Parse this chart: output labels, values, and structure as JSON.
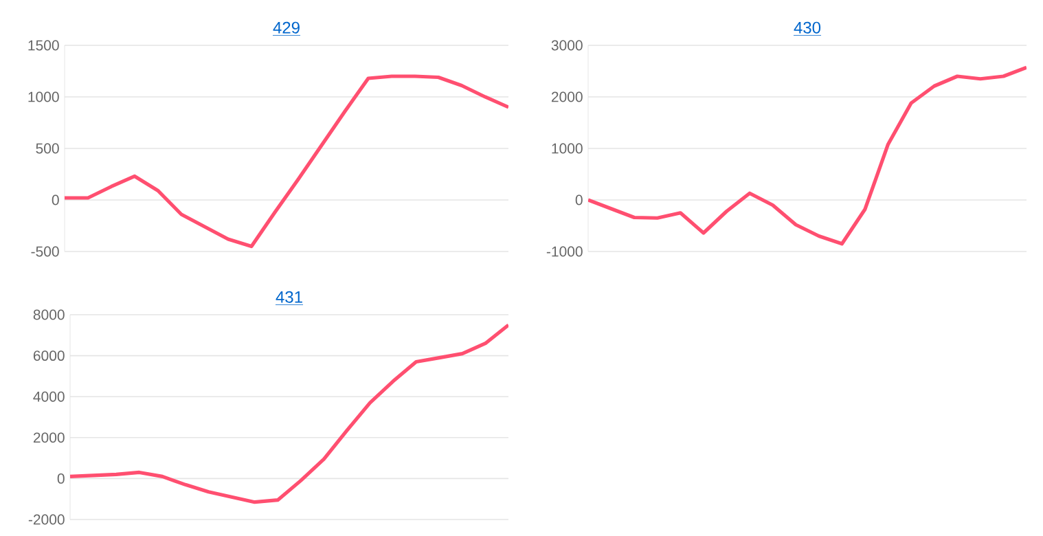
{
  "chart_data": [
    {
      "type": "line",
      "title": "429",
      "categories": [
        null,
        null,
        null,
        null,
        null,
        null,
        null,
        null,
        null,
        null,
        null,
        null,
        null,
        null,
        null,
        null,
        null,
        null,
        null,
        null
      ],
      "series": [
        {
          "color": "#ff4f70",
          "values": [
            20,
            20,
            130,
            230,
            90,
            -140,
            -260,
            -380,
            -450,
            -120,
            200,
            530,
            860,
            1180,
            1200,
            1200,
            1190,
            1110,
            1000,
            900
          ]
        }
      ],
      "ylim": [
        -500,
        1500
      ],
      "yticks": [
        -500,
        0,
        500,
        1000,
        1500
      ],
      "grid": "y",
      "tick_labels": "y",
      "marker": "none",
      "line_style": "solid"
    },
    {
      "type": "line",
      "title": "430",
      "categories": [
        null,
        null,
        null,
        null,
        null,
        null,
        null,
        null,
        null,
        null,
        null,
        null,
        null,
        null,
        null,
        null,
        null,
        null,
        null,
        null
      ],
      "series": [
        {
          "color": "#ff4f70",
          "values": [
            0,
            -170,
            -340,
            -350,
            -250,
            -640,
            -220,
            130,
            -100,
            -480,
            -700,
            -850,
            -180,
            1080,
            1880,
            2210,
            2400,
            2350,
            2400,
            2570
          ]
        }
      ],
      "ylim": [
        -1000,
        3000
      ],
      "yticks": [
        -1000,
        0,
        1000,
        2000,
        3000
      ],
      "grid": "y",
      "tick_labels": "y",
      "marker": "none",
      "line_style": "solid"
    },
    {
      "type": "line",
      "title": "431",
      "categories": [
        null,
        null,
        null,
        null,
        null,
        null,
        null,
        null,
        null,
        null,
        null,
        null,
        null,
        null,
        null,
        null,
        null,
        null,
        null,
        null
      ],
      "series": [
        {
          "color": "#ff4f70",
          "values": [
            100,
            150,
            200,
            300,
            100,
            -300,
            -650,
            -900,
            -1150,
            -1050,
            -100,
            950,
            2350,
            3700,
            4750,
            5700,
            5900,
            6100,
            6600,
            7500
          ]
        }
      ],
      "ylim": [
        -2000,
        8000
      ],
      "yticks": [
        -2000,
        0,
        2000,
        4000,
        6000,
        8000
      ],
      "grid": "y",
      "tick_labels": "y",
      "marker": "none",
      "line_style": "solid"
    }
  ]
}
